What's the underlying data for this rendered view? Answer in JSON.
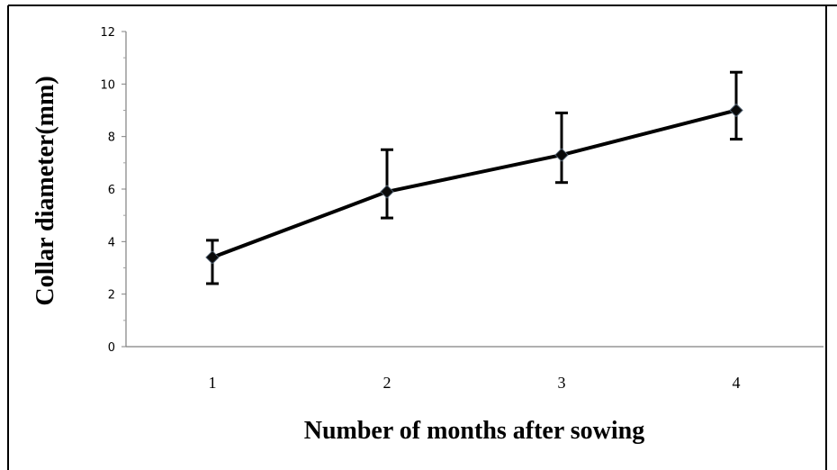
{
  "chart_data": {
    "type": "line",
    "categories": [
      "1",
      "2",
      "3",
      "4"
    ],
    "series": [
      {
        "values": [
          3.4,
          5.9,
          7.3,
          9.0
        ],
        "error_low": [
          2.4,
          4.9,
          6.25,
          7.9
        ],
        "error_high": [
          4.05,
          7.5,
          8.9,
          10.45
        ]
      }
    ],
    "xlabel": "Number of months after sowing",
    "ylabel": "Collar diameter(mm)",
    "ylim": [
      0,
      12
    ],
    "yticks": [
      "0",
      "2",
      "4",
      "6",
      "8",
      "10",
      "12"
    ],
    "grid": false,
    "legend": "none",
    "colors": {
      "line": "#000000",
      "marker": "#0a0a0a",
      "frame": "#000000"
    }
  }
}
